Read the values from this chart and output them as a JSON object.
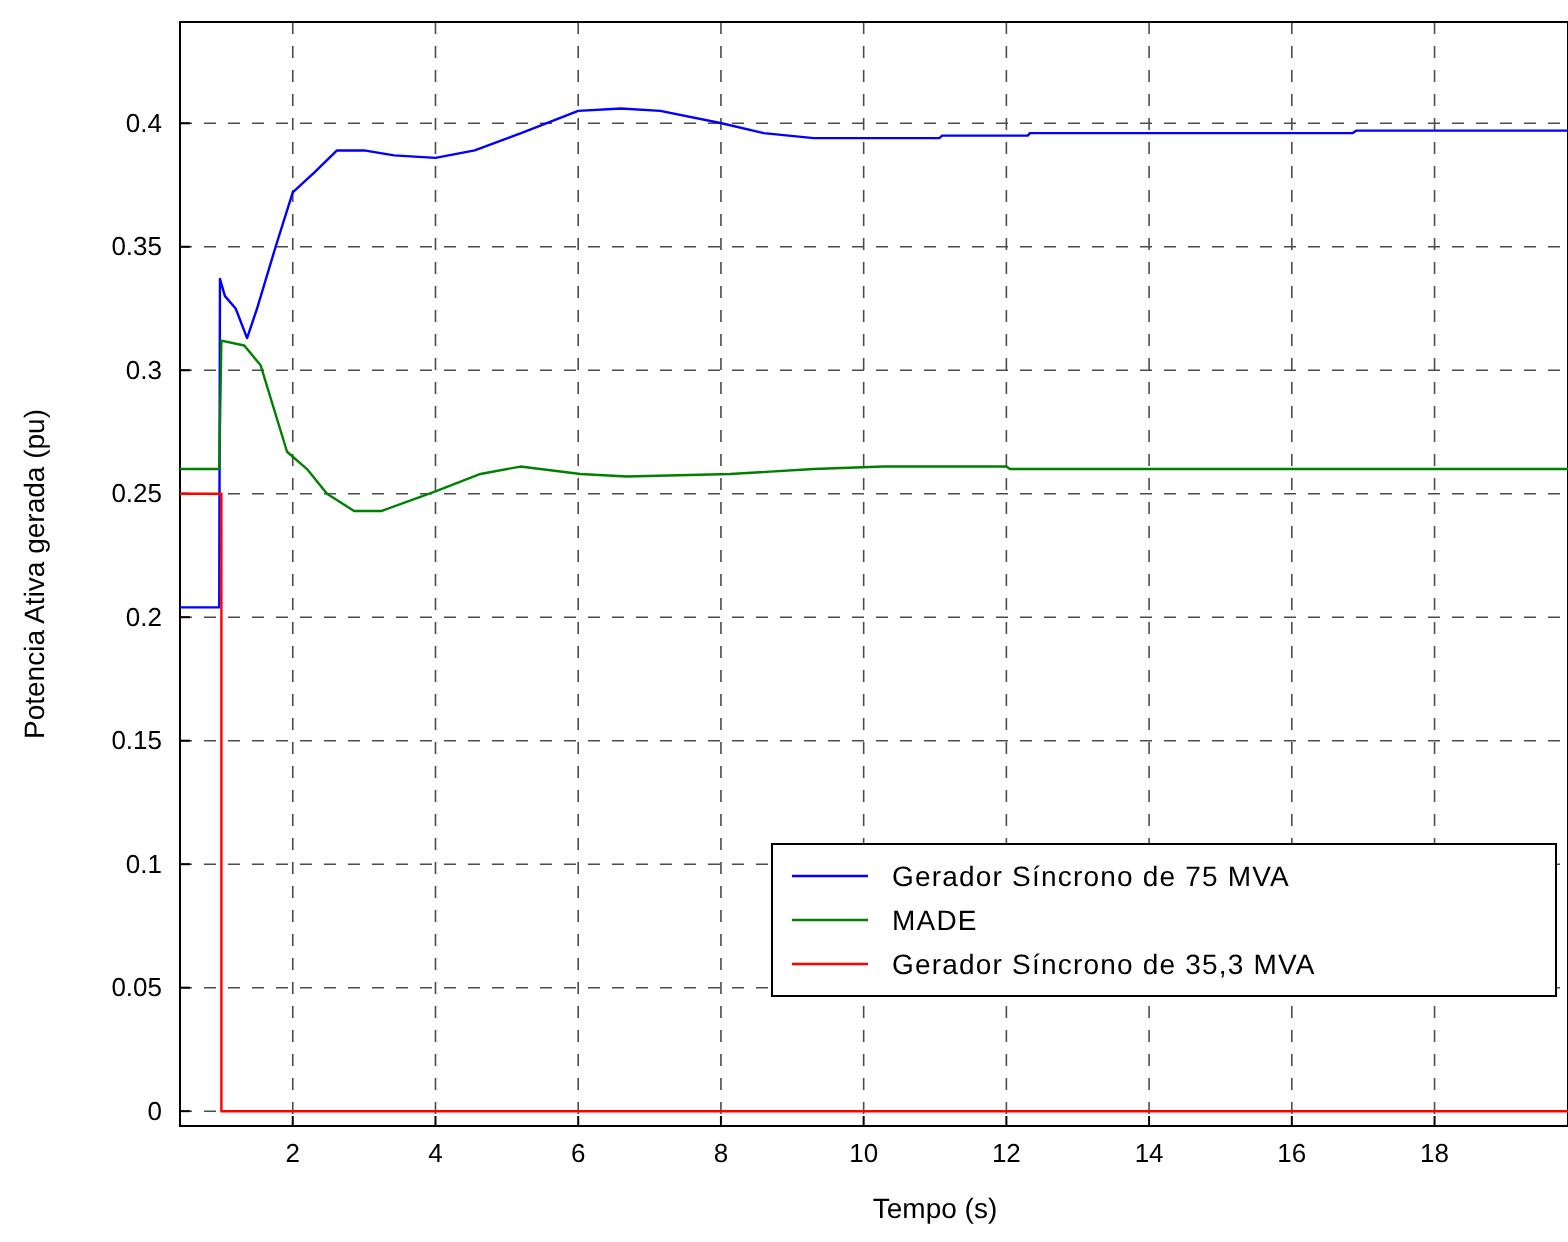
{
  "chart_data": {
    "type": "line",
    "xlabel": "Tempo (s)",
    "ylabel": "Potencia Ativa gerada (pu)",
    "xlim": [
      0.42,
      19.87
    ],
    "ylim": [
      -0.006,
      0.441
    ],
    "xticks": [
      2,
      4,
      6,
      8,
      10,
      12,
      14,
      16,
      18
    ],
    "yticks": [
      0,
      0.05,
      0.1,
      0.15,
      0.2,
      0.25,
      0.3,
      0.35,
      0.4
    ],
    "grid": true,
    "legend": "bottom right",
    "line_style": "solid",
    "marker": "none",
    "series": [
      {
        "name": "Gerador Síncrono de 75 MVA",
        "color": "#0000ff",
        "x": [
          0.42,
          0.97,
          0.98,
          1.05,
          1.2,
          1.36,
          1.5,
          1.76,
          2.0,
          2.3,
          2.62,
          3.0,
          3.42,
          4.0,
          4.55,
          5.2,
          6.0,
          6.6,
          7.15,
          8.01,
          8.6,
          9.3,
          11.06,
          11.1,
          12.3,
          12.33,
          16.85,
          16.9,
          19.87
        ],
        "values": [
          0.204,
          0.204,
          0.337,
          0.33,
          0.325,
          0.313,
          0.325,
          0.35,
          0.372,
          0.38,
          0.389,
          0.389,
          0.387,
          0.386,
          0.389,
          0.396,
          0.405,
          0.406,
          0.405,
          0.4,
          0.396,
          0.394,
          0.394,
          0.395,
          0.395,
          0.396,
          0.396,
          0.397,
          0.397
        ]
      },
      {
        "name": "MADE",
        "color": "#008000",
        "x": [
          0.42,
          0.97,
          1.0,
          1.32,
          1.55,
          1.92,
          2.2,
          2.48,
          2.86,
          3.24,
          4.0,
          4.63,
          5.19,
          6.03,
          6.68,
          8.13,
          9.3,
          10.28,
          12.0,
          12.05,
          19.87
        ],
        "values": [
          0.26,
          0.26,
          0.312,
          0.31,
          0.302,
          0.267,
          0.26,
          0.25,
          0.243,
          0.243,
          0.251,
          0.258,
          0.261,
          0.258,
          0.257,
          0.258,
          0.26,
          0.261,
          0.261,
          0.26,
          0.26
        ]
      },
      {
        "name": "Gerador Síncrono de 35,3 MVA",
        "color": "#ff0000",
        "x": [
          0.42,
          1.0,
          1.0,
          19.87
        ],
        "values": [
          0.25,
          0.25,
          0,
          0
        ]
      }
    ]
  }
}
